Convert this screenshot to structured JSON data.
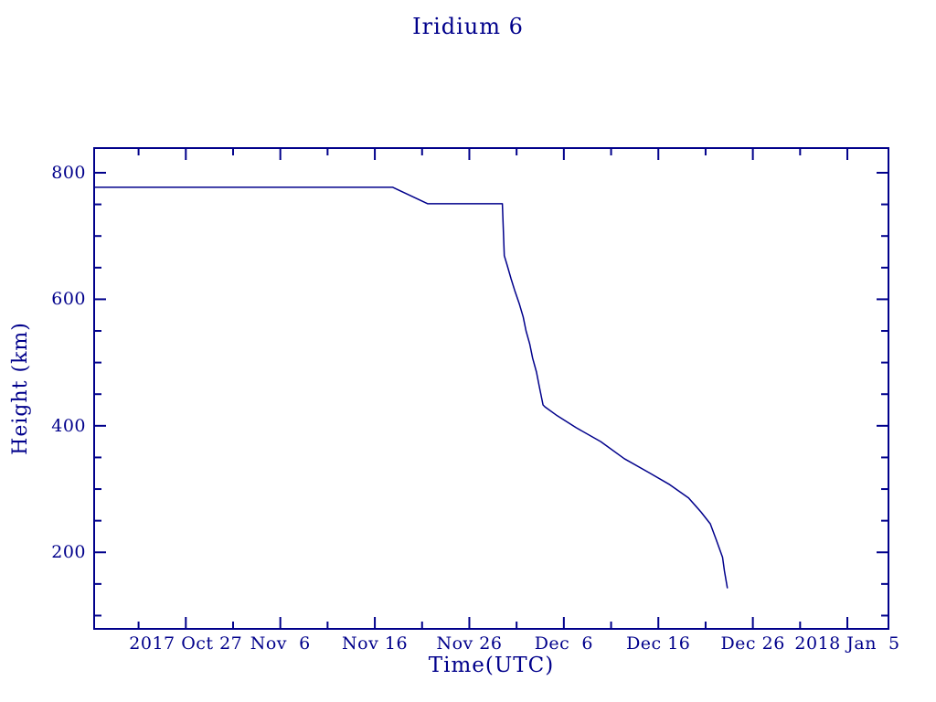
{
  "chart_data": {
    "type": "line",
    "title": "Iridium 6",
    "xlabel": "Time(UTC)",
    "ylabel": "Height (km)",
    "line_color": "#00008B",
    "background_color": "#FFFFFF",
    "grid": false,
    "legend": "none",
    "x_axis": {
      "unit": "days since 2017-10-27 00:00 UTC",
      "range": [
        -9.7,
        74.35
      ],
      "major_ticks": [
        {
          "day": 0,
          "label": "2017 Oct 27"
        },
        {
          "day": 10,
          "label": "Nov  6"
        },
        {
          "day": 20,
          "label": "Nov 16"
        },
        {
          "day": 30,
          "label": "Nov 26"
        },
        {
          "day": 40,
          "label": "Dec  6"
        },
        {
          "day": 50,
          "label": "Dec 16"
        },
        {
          "day": 60,
          "label": "Dec 26"
        },
        {
          "day": 70,
          "label": "2018 Jan  5"
        }
      ],
      "minor_tick_days": [
        -5,
        5,
        15,
        25,
        35,
        45,
        55,
        65
      ]
    },
    "y_axis": {
      "unit": "km",
      "range": [
        79,
        839
      ],
      "major_ticks": [
        {
          "value": 200,
          "label": "200"
        },
        {
          "value": 400,
          "label": "400"
        },
        {
          "value": 600,
          "label": "600"
        },
        {
          "value": 800,
          "label": "800"
        }
      ],
      "minor_tick_values": [
        100,
        150,
        250,
        300,
        350,
        450,
        500,
        550,
        650,
        700,
        750
      ]
    },
    "series": [
      {
        "name": "Iridium 6 height",
        "points": [
          [
            -9.7,
            777
          ],
          [
            21.9,
            777
          ],
          [
            25.6,
            751
          ],
          [
            33.5,
            751
          ],
          [
            33.7,
            669
          ],
          [
            34.0,
            654
          ],
          [
            34.4,
            633
          ],
          [
            34.8,
            614
          ],
          [
            35.3,
            592
          ],
          [
            35.7,
            572
          ],
          [
            36.0,
            550
          ],
          [
            36.4,
            529
          ],
          [
            36.7,
            507
          ],
          [
            37.1,
            485
          ],
          [
            37.4,
            462
          ],
          [
            37.8,
            433
          ],
          [
            38.0,
            430
          ],
          [
            39.3,
            416
          ],
          [
            41.3,
            397
          ],
          [
            43.9,
            375
          ],
          [
            46.4,
            348
          ],
          [
            49.0,
            326
          ],
          [
            51.2,
            307
          ],
          [
            53.2,
            286
          ],
          [
            54.5,
            264
          ],
          [
            55.5,
            245
          ],
          [
            56.1,
            221
          ],
          [
            56.8,
            192
          ],
          [
            57.0,
            170
          ],
          [
            57.3,
            144
          ]
        ]
      }
    ]
  }
}
